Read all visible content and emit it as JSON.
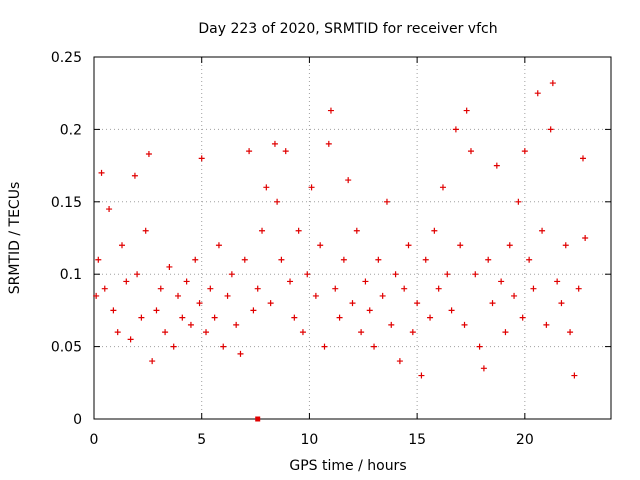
{
  "chart_data": {
    "type": "scatter",
    "title": "Day 223 of 2020, SRMTID for receiver vfch",
    "xlabel": "GPS time / hours",
    "ylabel": "SRMTID / TECUs",
    "xlim": [
      0,
      24
    ],
    "ylim": [
      0,
      0.25
    ],
    "xticks": [
      0,
      5,
      10,
      15,
      20
    ],
    "xtick_labels": [
      "0",
      "5",
      "10",
      "15",
      "20"
    ],
    "yticks": [
      0,
      0.05,
      0.1,
      0.15,
      0.2,
      0.25
    ],
    "ytick_labels": [
      "0",
      "0.05",
      "0.1",
      "0.15",
      "0.2",
      "0.25"
    ],
    "grid": true,
    "marker": "+",
    "color": "#e00000",
    "series": [
      {
        "name": "SRMTID",
        "x": [
          0.1,
          0.2,
          0.35,
          0.5,
          0.7,
          0.9,
          1.1,
          1.3,
          1.5,
          1.7,
          1.9,
          2.0,
          2.2,
          2.4,
          2.55,
          2.7,
          2.9,
          3.1,
          3.3,
          3.5,
          3.7,
          3.9,
          4.1,
          4.3,
          4.5,
          4.7,
          4.9,
          5.0,
          5.2,
          5.4,
          5.6,
          5.8,
          6.0,
          6.2,
          6.4,
          6.6,
          6.8,
          7.0,
          7.2,
          7.4,
          7.6,
          7.8,
          8.0,
          8.2,
          8.4,
          8.5,
          8.7,
          8.9,
          9.1,
          9.3,
          9.5,
          9.7,
          9.9,
          10.1,
          10.3,
          10.5,
          10.7,
          10.9,
          11.0,
          11.2,
          11.4,
          11.6,
          11.8,
          12.0,
          12.2,
          12.4,
          12.6,
          12.8,
          13.0,
          13.2,
          13.4,
          13.6,
          13.8,
          14.0,
          14.2,
          14.4,
          14.6,
          14.8,
          15.0,
          15.2,
          15.4,
          15.6,
          15.8,
          16.0,
          16.2,
          16.4,
          16.6,
          16.8,
          17.0,
          17.2,
          17.3,
          17.5,
          17.7,
          17.9,
          18.1,
          18.3,
          18.5,
          18.7,
          18.9,
          19.1,
          19.3,
          19.5,
          19.7,
          19.9,
          20.0,
          20.2,
          20.4,
          20.6,
          20.8,
          21.0,
          21.2,
          21.3,
          21.5,
          21.7,
          21.9,
          22.1,
          22.3,
          22.5,
          22.7,
          22.8
        ],
        "y": [
          0.085,
          0.11,
          0.17,
          0.09,
          0.145,
          0.075,
          0.06,
          0.12,
          0.095,
          0.055,
          0.168,
          0.1,
          0.07,
          0.13,
          0.183,
          0.04,
          0.075,
          0.09,
          0.06,
          0.105,
          0.05,
          0.085,
          0.07,
          0.095,
          0.065,
          0.11,
          0.08,
          0.18,
          0.06,
          0.09,
          0.07,
          0.12,
          0.05,
          0.085,
          0.1,
          0.065,
          0.045,
          0.11,
          0.185,
          0.075,
          0.09,
          0.13,
          0.16,
          0.08,
          0.19,
          0.15,
          0.11,
          0.185,
          0.095,
          0.07,
          0.13,
          0.06,
          0.1,
          0.16,
          0.085,
          0.12,
          0.05,
          0.19,
          0.213,
          0.09,
          0.07,
          0.11,
          0.165,
          0.08,
          0.13,
          0.06,
          0.095,
          0.075,
          0.05,
          0.11,
          0.085,
          0.15,
          0.065,
          0.1,
          0.04,
          0.09,
          0.12,
          0.06,
          0.08,
          0.03,
          0.11,
          0.07,
          0.13,
          0.09,
          0.16,
          0.1,
          0.075,
          0.2,
          0.12,
          0.065,
          0.213,
          0.185,
          0.1,
          0.05,
          0.035,
          0.11,
          0.08,
          0.175,
          0.095,
          0.06,
          0.12,
          0.085,
          0.15,
          0.07,
          0.185,
          0.11,
          0.09,
          0.225,
          0.13,
          0.065,
          0.2,
          0.232,
          0.095,
          0.08,
          0.12,
          0.06,
          0.03,
          0.09,
          0.18,
          0.125
        ]
      }
    ],
    "annotations": [
      {
        "x": 7.6,
        "y": 0.0,
        "marker": "square",
        "color": "#e00000"
      }
    ]
  }
}
